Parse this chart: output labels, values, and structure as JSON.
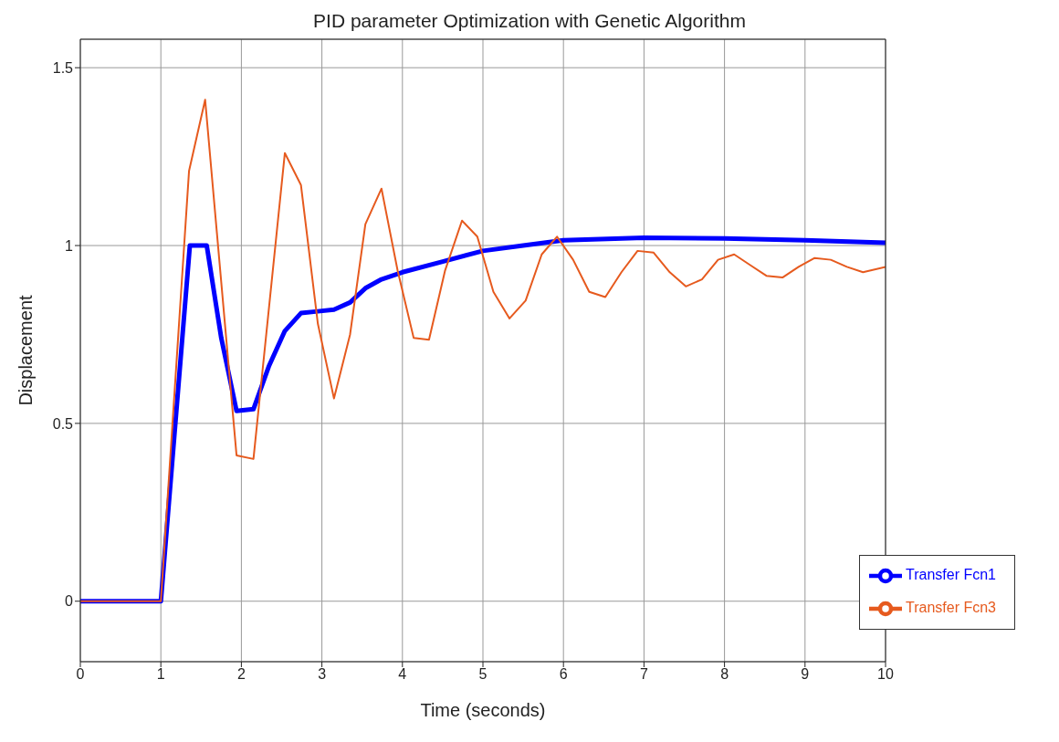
{
  "chart_data": {
    "type": "line",
    "title": "PID parameter Optimization with Genetic Algorithm",
    "xlabel": "Time (seconds)",
    "ylabel": "Displacement",
    "xlim": [
      0,
      10
    ],
    "xticks": [
      0,
      1,
      2,
      3,
      4,
      5,
      6,
      7,
      8,
      9,
      10
    ],
    "ylim": [
      -0.17,
      1.58
    ],
    "yticks": [
      0,
      0.5,
      1,
      1.5
    ],
    "grid": true,
    "legend": "bottom right",
    "marker": "none",
    "series": [
      {
        "name": "Transfer Fcn1",
        "color": "#0000ff",
        "x": [
          0,
          1,
          1.36,
          1.57,
          1.75,
          1.94,
          2.15,
          2.34,
          2.54,
          2.74,
          2.95,
          3.15,
          3.35,
          3.54,
          3.74,
          4,
          4.5,
          5,
          5.5,
          6,
          7,
          8,
          9,
          10
        ],
        "values": [
          0,
          0,
          1.0,
          1.0,
          0.74,
          0.535,
          0.54,
          0.66,
          0.76,
          0.81,
          0.815,
          0.82,
          0.84,
          0.88,
          0.905,
          0.925,
          0.955,
          0.985,
          1.0,
          1.015,
          1.022,
          1.02,
          1.015,
          1.008
        ]
      },
      {
        "name": "Transfer Fcn3",
        "color": "#e65a1e",
        "x": [
          0,
          1,
          1.35,
          1.55,
          1.94,
          2.15,
          2.54,
          2.74,
          2.95,
          3.15,
          3.35,
          3.54,
          3.74,
          3.94,
          4.14,
          4.33,
          4.53,
          4.74,
          4.93,
          5.13,
          5.33,
          5.53,
          5.73,
          5.92,
          6.12,
          6.32,
          6.52,
          6.72,
          6.92,
          7.12,
          7.32,
          7.52,
          7.72,
          7.92,
          8.12,
          8.32,
          8.52,
          8.72,
          8.92,
          9.12,
          9.32,
          9.52,
          9.72,
          10
        ],
        "values": [
          0,
          0,
          1.21,
          1.41,
          0.41,
          0.4,
          1.26,
          1.17,
          0.78,
          0.57,
          0.75,
          1.06,
          1.16,
          0.93,
          0.74,
          0.735,
          0.93,
          1.07,
          1.025,
          0.87,
          0.795,
          0.845,
          0.975,
          1.025,
          0.96,
          0.87,
          0.855,
          0.925,
          0.985,
          0.98,
          0.925,
          0.885,
          0.905,
          0.96,
          0.975,
          0.945,
          0.915,
          0.91,
          0.94,
          0.965,
          0.96,
          0.94,
          0.925,
          0.94
        ]
      }
    ]
  }
}
